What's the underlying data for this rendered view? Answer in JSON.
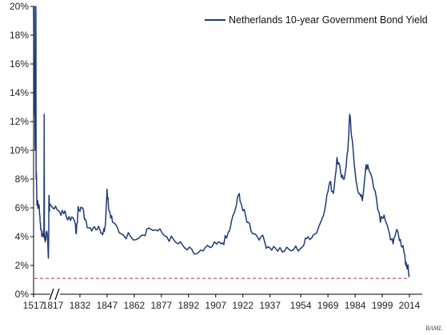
{
  "chart_data": {
    "type": "line",
    "legend_position": "top-right",
    "colors": {
      "series": "#1f3b73",
      "reference": "#c0504d",
      "axis": "#000000"
    },
    "y_ticks": [
      "0%",
      "2%",
      "4%",
      "6%",
      "8%",
      "10%",
      "12%",
      "14%",
      "16%",
      "18%",
      "20%"
    ],
    "ylim": [
      0,
      20
    ],
    "x_ticks": [
      "1517",
      "1817",
      "1832",
      "1847",
      "1862",
      "1877",
      "1892",
      "1907",
      "1922",
      "1937",
      "1954",
      "1969",
      "1984",
      "1999",
      "2014"
    ],
    "axis_break": "between 1517 and 1817",
    "grid": false,
    "series": [
      {
        "name": "Netherlands 10-year Government Bond Yield",
        "points": [
          [
            1517,
            20.0
          ],
          [
            1520,
            18.0
          ],
          [
            1524,
            19.5
          ],
          [
            1528,
            12.5
          ],
          [
            1532,
            20.0
          ],
          [
            1536,
            15.0
          ],
          [
            1540,
            14.0
          ],
          [
            1545,
            10.0
          ],
          [
            1550,
            16.0
          ],
          [
            1555,
            12.0
          ],
          [
            1560,
            20.0
          ],
          [
            1565,
            8.0
          ],
          [
            1570,
            8.5
          ],
          [
            1580,
            6.2
          ],
          [
            1590,
            6.5
          ],
          [
            1600,
            6.0
          ],
          [
            1620,
            6.2
          ],
          [
            1640,
            5.0
          ],
          [
            1660,
            4.5
          ],
          [
            1680,
            4.2
          ],
          [
            1700,
            4.0
          ],
          [
            1710,
            4.5
          ],
          [
            1716,
            12.5
          ],
          [
            1720,
            4.0
          ],
          [
            1740,
            3.8
          ],
          [
            1760,
            4.2
          ],
          [
            1780,
            3.8
          ],
          [
            1794,
            2.5
          ],
          [
            1800,
            4.0
          ],
          [
            1805,
            6.8
          ],
          [
            1810,
            6.5
          ],
          [
            1815,
            6.0
          ],
          [
            1817,
            6.0
          ],
          [
            1820,
            5.8
          ],
          [
            1823,
            5.6
          ],
          [
            1826,
            5.4
          ],
          [
            1829,
            5.1
          ],
          [
            1830,
            4.2
          ],
          [
            1831,
            6.1
          ],
          [
            1833,
            6.0
          ],
          [
            1835,
            5.2
          ],
          [
            1837,
            4.6
          ],
          [
            1840,
            4.7
          ],
          [
            1843,
            4.5
          ],
          [
            1845,
            4.4
          ],
          [
            1846,
            4.8
          ],
          [
            1847,
            7.3
          ],
          [
            1848,
            5.8
          ],
          [
            1850,
            5.0
          ],
          [
            1855,
            4.2
          ],
          [
            1860,
            4.0
          ],
          [
            1866,
            4.1
          ],
          [
            1870,
            4.6
          ],
          [
            1875,
            4.4
          ],
          [
            1880,
            4.0
          ],
          [
            1885,
            3.6
          ],
          [
            1890,
            3.2
          ],
          [
            1895,
            2.8
          ],
          [
            1900,
            3.0
          ],
          [
            1905,
            3.3
          ],
          [
            1910,
            3.5
          ],
          [
            1913,
            3.9
          ],
          [
            1915,
            4.6
          ],
          [
            1918,
            6.0
          ],
          [
            1920,
            7.0
          ],
          [
            1922,
            5.8
          ],
          [
            1925,
            5.0
          ],
          [
            1928,
            4.2
          ],
          [
            1932,
            4.0
          ],
          [
            1936,
            3.3
          ],
          [
            1940,
            3.2
          ],
          [
            1945,
            3.0
          ],
          [
            1950,
            3.1
          ],
          [
            1955,
            3.3
          ],
          [
            1958,
            4.0
          ],
          [
            1962,
            4.2
          ],
          [
            1965,
            5.0
          ],
          [
            1968,
            6.5
          ],
          [
            1970,
            7.8
          ],
          [
            1972,
            7.0
          ],
          [
            1974,
            9.5
          ],
          [
            1976,
            8.5
          ],
          [
            1978,
            8.0
          ],
          [
            1980,
            10.0
          ],
          [
            1981,
            12.5
          ],
          [
            1982,
            11.0
          ],
          [
            1984,
            8.5
          ],
          [
            1986,
            7.0
          ],
          [
            1988,
            6.5
          ],
          [
            1990,
            9.0
          ],
          [
            1992,
            8.5
          ],
          [
            1995,
            7.2
          ],
          [
            1998,
            5.0
          ],
          [
            2000,
            5.5
          ],
          [
            2003,
            4.2
          ],
          [
            2005,
            3.5
          ],
          [
            2007,
            4.5
          ],
          [
            2009,
            3.8
          ],
          [
            2011,
            2.9
          ],
          [
            2012,
            2.0
          ],
          [
            2013,
            2.0
          ],
          [
            2014,
            1.2
          ]
        ]
      }
    ],
    "reference_line": {
      "y": 1.1,
      "style": "dashed"
    }
  }
}
